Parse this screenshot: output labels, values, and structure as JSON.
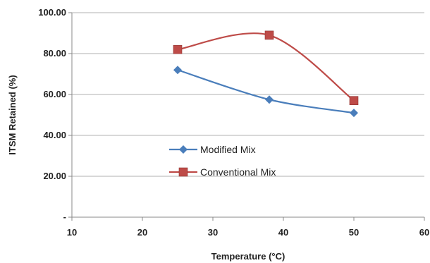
{
  "chart_data": {
    "type": "line",
    "xlabel": "Temperature (°C)",
    "ylabel": "ITSM Retained (%)",
    "xlim": [
      10,
      60
    ],
    "ylim": [
      0,
      100
    ],
    "xticks": [
      "10",
      "20",
      "30",
      "40",
      "50",
      "60"
    ],
    "yticks": [
      "-",
      "20.00",
      "40.00",
      "60.00",
      "80.00",
      "100.00"
    ],
    "grid": "horizontal",
    "legend_position": "center-left",
    "smooth": true,
    "series": [
      {
        "name": "Modified Mix",
        "color": "#4a7ebb",
        "marker": "diamond",
        "x": [
          25,
          38,
          50
        ],
        "y": [
          72,
          57.5,
          51
        ]
      },
      {
        "name": "Conventional  Mix",
        "color": "#be4b48",
        "marker": "square",
        "x": [
          25,
          38,
          50
        ],
        "y": [
          82,
          89,
          57
        ]
      }
    ]
  }
}
